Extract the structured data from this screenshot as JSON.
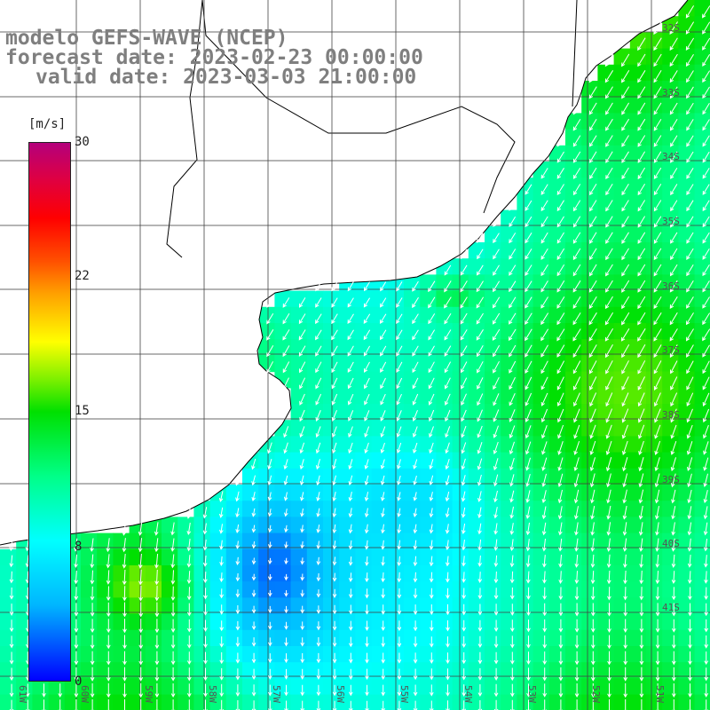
{
  "title": {
    "line1": "modelo GEFS-WAVE (NCEP)",
    "line2": "forecast date: 2023-02-23 00:00:00",
    "line3": "valid date: 2023-03-03 21:00:00"
  },
  "colorbar": {
    "unit": "[m/s]",
    "ticks": [
      "30",
      "22",
      "15",
      "8",
      "0"
    ],
    "tick_values": [
      30,
      22,
      15,
      8,
      0
    ],
    "range": [
      0,
      30
    ],
    "colors": [
      "#0000ff",
      "#00b5ff",
      "#00ffff",
      "#00ff88",
      "#00e000",
      "#ffff00",
      "#ffa000",
      "#ff0000",
      "#b4007c"
    ]
  },
  "lat_labels": [
    "32S",
    "33S",
    "34S",
    "35S",
    "36S",
    "37S",
    "38S",
    "39S",
    "40S",
    "41S"
  ],
  "lon_labels": [
    "61W",
    "60W",
    "59W",
    "58W",
    "57W",
    "56W",
    "55W",
    "54W",
    "53W",
    "52W",
    "51W"
  ],
  "map_colors": {
    "land": "#ffffff",
    "grid": "#444444",
    "coast": "#000000",
    "arrows": "#ffffff"
  }
}
